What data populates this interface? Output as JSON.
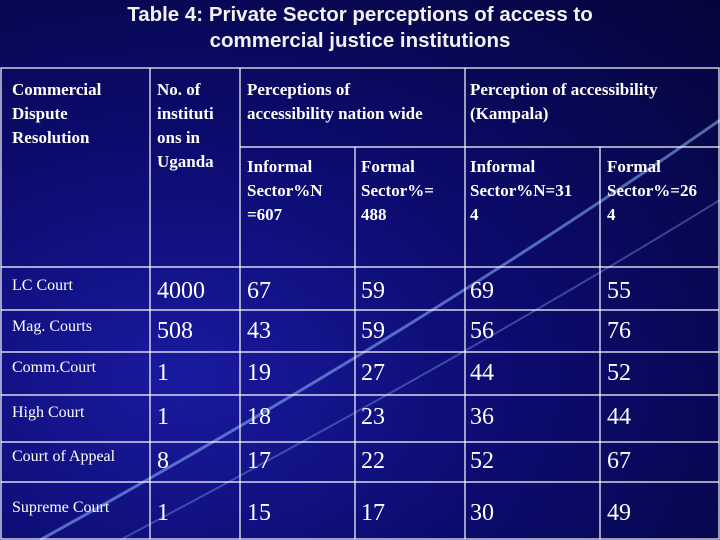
{
  "title": {
    "line1": "Table 4: Private Sector perceptions of access to",
    "line2": "commercial justice institutions"
  },
  "table": {
    "header": {
      "col1": [
        "Commercial",
        "Dispute",
        "Resolution"
      ],
      "col2": [
        "No. of",
        "instituti",
        "ons in",
        "Uganda"
      ],
      "group1": [
        "Perceptions of",
        "accessibility nation wide"
      ],
      "group2": [
        "Perception of accessibility",
        "(Kampala)"
      ],
      "sub": [
        [
          "Informal",
          "Sector%N",
          "=607"
        ],
        [
          "Formal",
          "Sector%=",
          "488"
        ],
        [
          "Informal",
          "Sector%N=31",
          "4"
        ],
        [
          "Formal",
          "Sector%=26",
          "4"
        ]
      ]
    },
    "rows": [
      {
        "label": "LC Court",
        "values": [
          "4000",
          "67",
          "59",
          "69",
          "55"
        ]
      },
      {
        "label": "Mag. Courts",
        "values": [
          "508",
          "43",
          "59",
          "56",
          "76"
        ]
      },
      {
        "label": "Comm.Court",
        "values": [
          "1",
          "19",
          "27",
          "44",
          "52"
        ]
      },
      {
        "label": "High Court",
        "values": [
          "1",
          "18",
          "23",
          "36",
          "44"
        ]
      },
      {
        "label": "Court of Appeal",
        "values": [
          "8",
          "17",
          "22",
          "52",
          "67"
        ]
      },
      {
        "label": "Supreme Court",
        "values": [
          "1",
          "15",
          "17",
          "30",
          "49"
        ]
      }
    ]
  },
  "colors": {
    "background": "#0b0b6e",
    "grid_line": "#ffffff",
    "swoosh": "#8fb8ff",
    "title_text": "#f2f2f2"
  }
}
